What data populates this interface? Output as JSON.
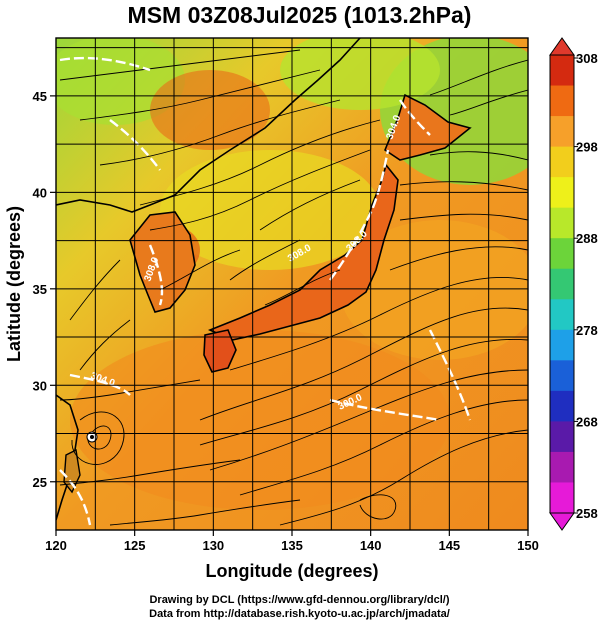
{
  "title": "MSM 03Z08Jul2025 (1013.2hPa)",
  "x_axis": {
    "label": "Longitude (degrees)",
    "ticks": [
      "120",
      "125",
      "130",
      "135",
      "140",
      "145",
      "150"
    ]
  },
  "y_axis": {
    "label": "Latitude  (degrees)",
    "ticks": [
      "25",
      "30",
      "35",
      "40",
      "45"
    ]
  },
  "colorbar": {
    "ticks": [
      "308",
      "298",
      "288",
      "278",
      "268",
      "258"
    ],
    "colors": [
      "#d42a10",
      "#ef6a12",
      "#f6a02a",
      "#f2ce1c",
      "#eef01a",
      "#b8e82a",
      "#6cd43a",
      "#34c873",
      "#22c8c4",
      "#1ea0e8",
      "#1a60d8",
      "#1f2ec0",
      "#5a1aa8",
      "#a81ab0",
      "#e61ad8"
    ]
  },
  "contour_labels": [
    "308.0",
    "308.0",
    "304.0",
    "300.0",
    "308.0",
    "304.0"
  ],
  "credits": {
    "line1": "Drawing by DCL (https://www.gfd-dennou.org/library/dcl/)",
    "line2": "Data from http://database.rish.kyoto-u.ac.jp/arch/jmadata/"
  }
}
